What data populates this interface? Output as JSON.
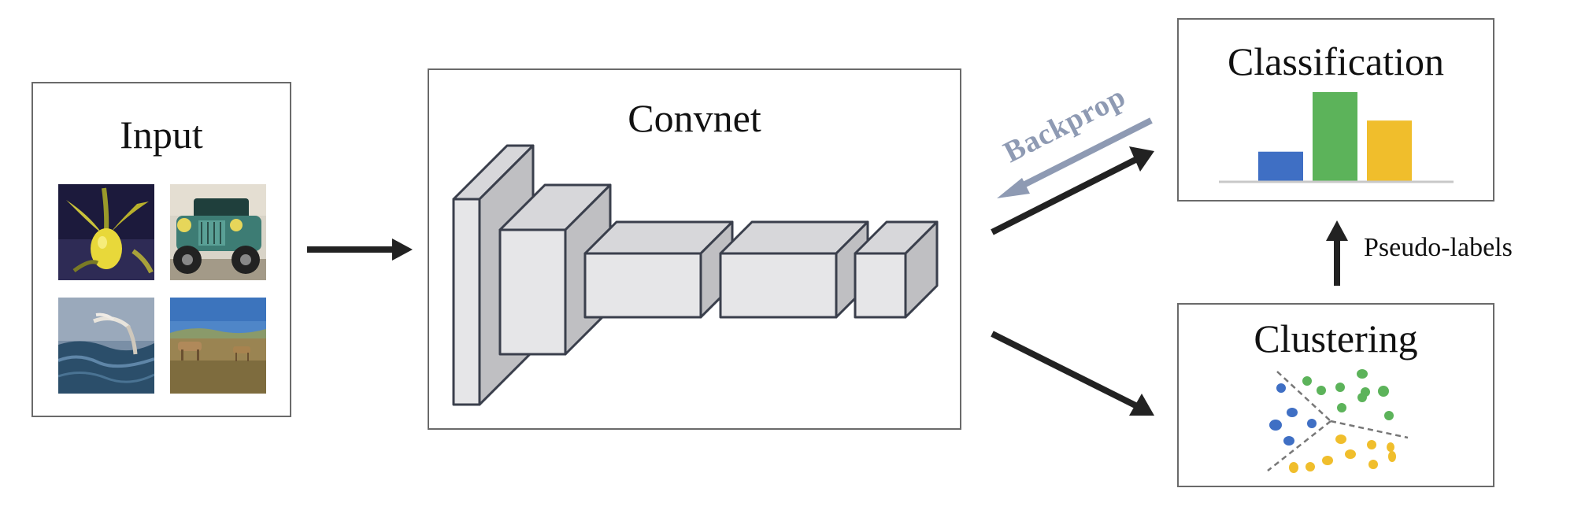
{
  "panels": {
    "input": {
      "title": "Input"
    },
    "convnet": {
      "title": "Convnet"
    },
    "classification": {
      "title": "Classification"
    },
    "clustering": {
      "title": "Clustering"
    }
  },
  "labels": {
    "backprop": "Backprop",
    "pseudo_labels": "Pseudo-labels"
  },
  "input_images": [
    {
      "subject": "yellow orchid flower"
    },
    {
      "subject": "vintage green car"
    },
    {
      "subject": "bird over ocean waves"
    },
    {
      "subject": "antelope on grassland"
    }
  ],
  "classification_bars": [
    {
      "value": 0.33,
      "color": "#3f6fc4"
    },
    {
      "value": 1.0,
      "color": "#5cb35a"
    },
    {
      "value": 0.68,
      "color": "#f0be2c"
    }
  ],
  "colors": {
    "arrow": "#222222",
    "backprop_arrow": "#8e9ab3",
    "backprop_text": "#8e9ab3",
    "panel_border": "#6a6a6a",
    "block_front": "#e6e6e8",
    "block_side": "#bfbfc2",
    "block_stroke": "#3a3f4c",
    "cluster_blue": "#3f6fc4",
    "cluster_green": "#5cb35a",
    "cluster_yellow": "#f0be2c"
  }
}
